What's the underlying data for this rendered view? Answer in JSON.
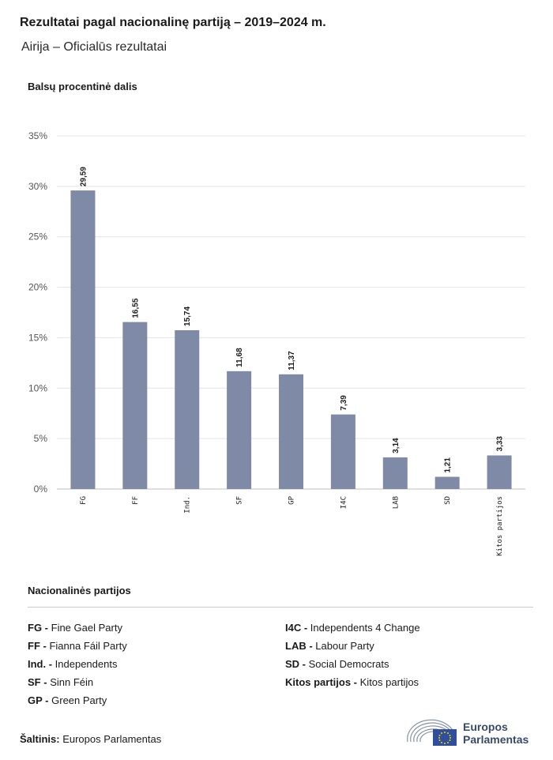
{
  "header": {
    "title": "Rezultatai pagal nacionalinę partiją – 2019–2024 m.",
    "subtitle": "Airija – Oficialūs rezultatai"
  },
  "chart_data": {
    "type": "bar",
    "ylabel": "Balsų procentinė dalis",
    "categories": [
      "FG",
      "FF",
      "Ind.",
      "SF",
      "GP",
      "I4C",
      "LAB",
      "SD",
      "Kitos partijos"
    ],
    "values": [
      29.59,
      16.55,
      15.74,
      11.68,
      11.37,
      7.39,
      3.14,
      1.21,
      3.33
    ],
    "value_labels": [
      "29,59",
      "16,55",
      "15,74",
      "11,68",
      "11,37",
      "7,39",
      "3,14",
      "1,21",
      "3,33"
    ],
    "ylim": [
      0,
      35
    ],
    "yticks": [
      0,
      5,
      10,
      15,
      20,
      25,
      30,
      35
    ],
    "ytick_labels": [
      "0%",
      "5%",
      "10%",
      "15%",
      "20%",
      "25%",
      "30%",
      "35%"
    ],
    "grid": true,
    "bar_color": "#7f8aa6"
  },
  "legend": {
    "title": "Nacionalinės partijos",
    "left": [
      {
        "abbr": "FG -",
        "name": "Fine Gael Party"
      },
      {
        "abbr": "FF -",
        "name": "Fianna Fáil Party"
      },
      {
        "abbr": "Ind. -",
        "name": "Independents"
      },
      {
        "abbr": "SF -",
        "name": "Sinn Féin"
      },
      {
        "abbr": "GP -",
        "name": "Green Party"
      }
    ],
    "right": [
      {
        "abbr": "I4C -",
        "name": "Independents 4 Change"
      },
      {
        "abbr": "LAB -",
        "name": "Labour Party"
      },
      {
        "abbr": "SD -",
        "name": "Social Democrats"
      },
      {
        "abbr": "Kitos partijos -",
        "name": "Kitos partijos"
      }
    ]
  },
  "footer": {
    "source_label": "Šaltinis:",
    "source_value": "Europos Parlamentas",
    "logo_line1": "Europos",
    "logo_line2": "Parlamentas",
    "logo_color": "#364a6b"
  }
}
